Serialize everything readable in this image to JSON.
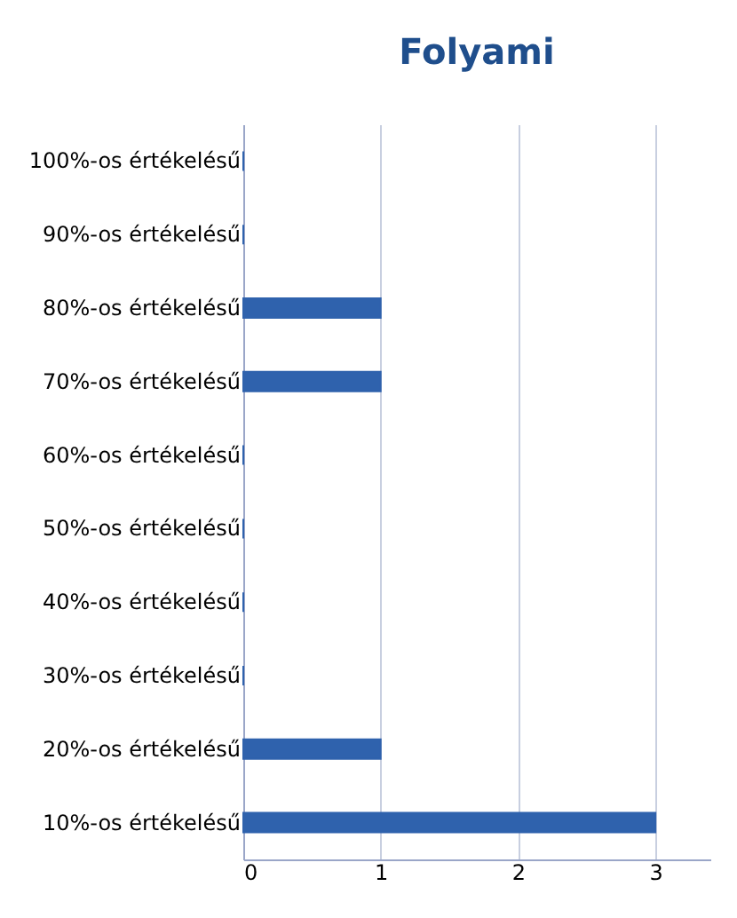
{
  "chart_data": {
    "type": "bar",
    "orientation": "horizontal",
    "title": "Folyami",
    "categories": [
      "100%-os értékelésű",
      "90%-os értékelésű",
      "80%-os értékelésű",
      "70%-os értékelésű",
      "60%-os értékelésű",
      "50%-os értékelésű",
      "40%-os értékelésű",
      "30%-os értékelésű",
      "20%-os értékelésű",
      "10%-os értékelésű"
    ],
    "values": [
      0,
      0,
      1,
      1,
      0,
      0,
      0,
      0,
      1,
      3
    ],
    "color": "#2f62ad",
    "xlim": [
      0,
      3.4
    ],
    "xticks": [
      0,
      1,
      2,
      3
    ],
    "grid": "x"
  }
}
